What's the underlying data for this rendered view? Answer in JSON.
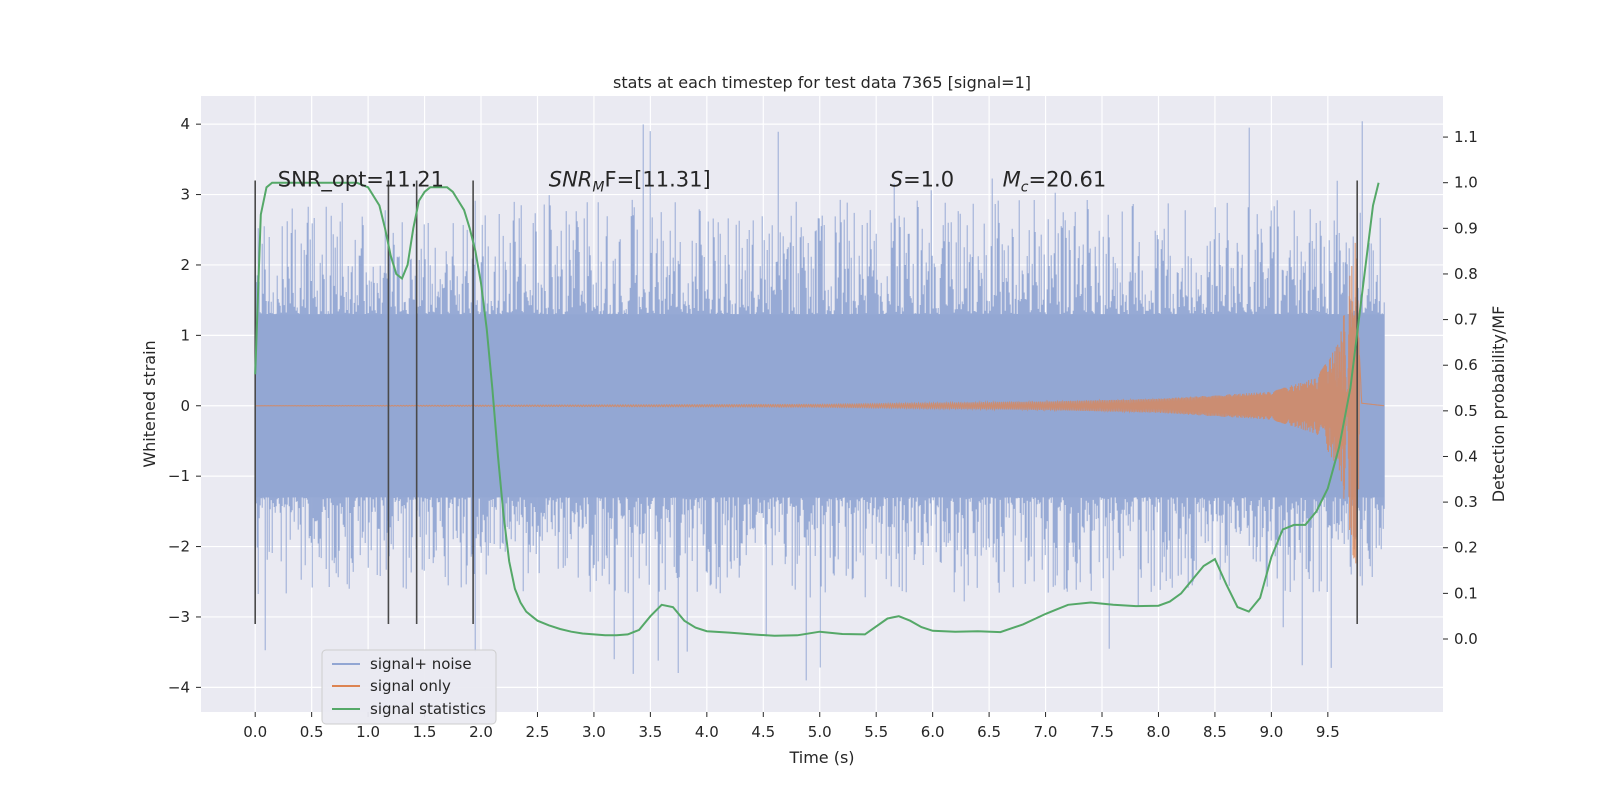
{
  "chart_data": {
    "type": "line",
    "title": "stats at each timestep for test data 7365 [signal=1]",
    "xlabel": "Time (s)",
    "ylabel": "Whitened strain",
    "y2label": "Detection probability/MF",
    "xlim": [
      -0.48,
      10.52
    ],
    "ylim": [
      -4.35,
      4.4
    ],
    "y2lim": [
      -0.16,
      1.19
    ],
    "xticks": [
      0.0,
      0.5,
      1.0,
      1.5,
      2.0,
      2.5,
      3.0,
      3.5,
      4.0,
      4.5,
      5.0,
      5.5,
      6.0,
      6.5,
      7.0,
      7.5,
      8.0,
      8.5,
      9.0,
      9.5
    ],
    "xtick_labels": [
      "0.0",
      "0.5",
      "1.0",
      "1.5",
      "2.0",
      "2.5",
      "3.0",
      "3.5",
      "4.0",
      "4.5",
      "5.0",
      "5.5",
      "6.0",
      "6.5",
      "7.0",
      "7.5",
      "8.0",
      "8.5",
      "9.0",
      "9.5"
    ],
    "yticks": [
      -4,
      -3,
      -2,
      -1,
      0,
      1,
      2,
      3,
      4
    ],
    "ytick_labels": [
      "−4",
      "−3",
      "−2",
      "−1",
      "0",
      "1",
      "2",
      "3",
      "4"
    ],
    "y2ticks": [
      0.0,
      0.1,
      0.2,
      0.3,
      0.4,
      0.5,
      0.6,
      0.7,
      0.8,
      0.9,
      1.0,
      1.1
    ],
    "y2tick_labels": [
      "0.0",
      "0.1",
      "0.2",
      "0.3",
      "0.4",
      "0.5",
      "0.6",
      "0.7",
      "0.8",
      "0.9",
      "1.0",
      "1.1"
    ],
    "grid": true,
    "legend_position": "lower-left",
    "series": [
      {
        "name": "signal+ noise",
        "axis": "left",
        "color": "#92a6d3",
        "kind": "noise-band",
        "x_range": [
          0.0,
          10.0
        ],
        "band_core": [
          -1.3,
          1.3
        ],
        "typical_peak": [
          -2.4,
          2.6
        ],
        "max_observed": [
          -4.0,
          4.05
        ]
      },
      {
        "name": "signal only",
        "axis": "left",
        "color": "#dd8452",
        "kind": "chirp",
        "x_range": [
          0.0,
          10.0
        ],
        "amplitude_points": [
          [
            0.0,
            0.0
          ],
          [
            5.0,
            0.02
          ],
          [
            7.0,
            0.06
          ],
          [
            8.0,
            0.1
          ],
          [
            9.0,
            0.2
          ],
          [
            9.4,
            0.4
          ],
          [
            9.6,
            0.9
          ],
          [
            9.75,
            2.4
          ],
          [
            9.8,
            0.05
          ],
          [
            10.0,
            0.0
          ]
        ]
      },
      {
        "name": "signal statistics",
        "axis": "right",
        "color": "#55a868",
        "kind": "line",
        "x": [
          0.0,
          0.05,
          0.1,
          0.15,
          0.2,
          0.3,
          0.4,
          0.5,
          0.6,
          0.7,
          0.8,
          0.9,
          1.0,
          1.1,
          1.15,
          1.2,
          1.25,
          1.3,
          1.35,
          1.4,
          1.45,
          1.5,
          1.55,
          1.6,
          1.65,
          1.7,
          1.75,
          1.8,
          1.85,
          1.9,
          1.95,
          2.0,
          2.05,
          2.1,
          2.15,
          2.2,
          2.25,
          2.3,
          2.35,
          2.4,
          2.45,
          2.5,
          2.6,
          2.7,
          2.8,
          2.9,
          3.0,
          3.1,
          3.2,
          3.3,
          3.4,
          3.5,
          3.6,
          3.7,
          3.8,
          3.9,
          4.0,
          4.2,
          4.4,
          4.6,
          4.8,
          5.0,
          5.2,
          5.4,
          5.6,
          5.7,
          5.8,
          5.9,
          6.0,
          6.2,
          6.4,
          6.6,
          6.8,
          7.0,
          7.1,
          7.2,
          7.4,
          7.6,
          7.8,
          8.0,
          8.1,
          8.2,
          8.3,
          8.4,
          8.5,
          8.6,
          8.7,
          8.8,
          8.9,
          9.0,
          9.1,
          9.2,
          9.3,
          9.4,
          9.5,
          9.6,
          9.7,
          9.8,
          9.9,
          9.95
        ],
        "y": [
          0.58,
          0.93,
          0.99,
          1.0,
          1.0,
          1.0,
          1.0,
          1.0,
          1.0,
          1.0,
          1.0,
          1.0,
          0.99,
          0.95,
          0.9,
          0.84,
          0.8,
          0.79,
          0.82,
          0.9,
          0.96,
          0.98,
          0.99,
          0.99,
          0.99,
          0.99,
          0.98,
          0.96,
          0.94,
          0.9,
          0.85,
          0.78,
          0.68,
          0.55,
          0.4,
          0.27,
          0.17,
          0.11,
          0.08,
          0.06,
          0.05,
          0.04,
          0.03,
          0.022,
          0.016,
          0.012,
          0.01,
          0.008,
          0.008,
          0.01,
          0.02,
          0.05,
          0.075,
          0.07,
          0.04,
          0.025,
          0.017,
          0.014,
          0.01,
          0.007,
          0.008,
          0.016,
          0.011,
          0.01,
          0.045,
          0.05,
          0.04,
          0.026,
          0.018,
          0.016,
          0.017,
          0.015,
          0.032,
          0.055,
          0.065,
          0.075,
          0.08,
          0.075,
          0.072,
          0.073,
          0.082,
          0.1,
          0.13,
          0.16,
          0.175,
          0.12,
          0.07,
          0.06,
          0.09,
          0.18,
          0.24,
          0.25,
          0.25,
          0.28,
          0.33,
          0.42,
          0.55,
          0.75,
          0.95,
          1.0
        ]
      }
    ],
    "vlines": [
      0.0,
      1.18,
      1.43,
      1.93,
      9.76
    ],
    "vline_range": [
      -3.1,
      3.2
    ],
    "annotations": [
      {
        "text": "SNR_opt=11.21",
        "x": 0.2,
        "y": 3.2
      },
      {
        "prefix": "",
        "main": "SNR",
        "sub": "M",
        "after": "F=[11.31]",
        "x": 2.6,
        "y": 3.2
      },
      {
        "main": "S",
        "after": "=1.0",
        "x": 5.62,
        "y": 3.2
      },
      {
        "main": "M",
        "sub": "c",
        "after": "=20.61",
        "x": 6.62,
        "y": 3.2
      }
    ]
  }
}
